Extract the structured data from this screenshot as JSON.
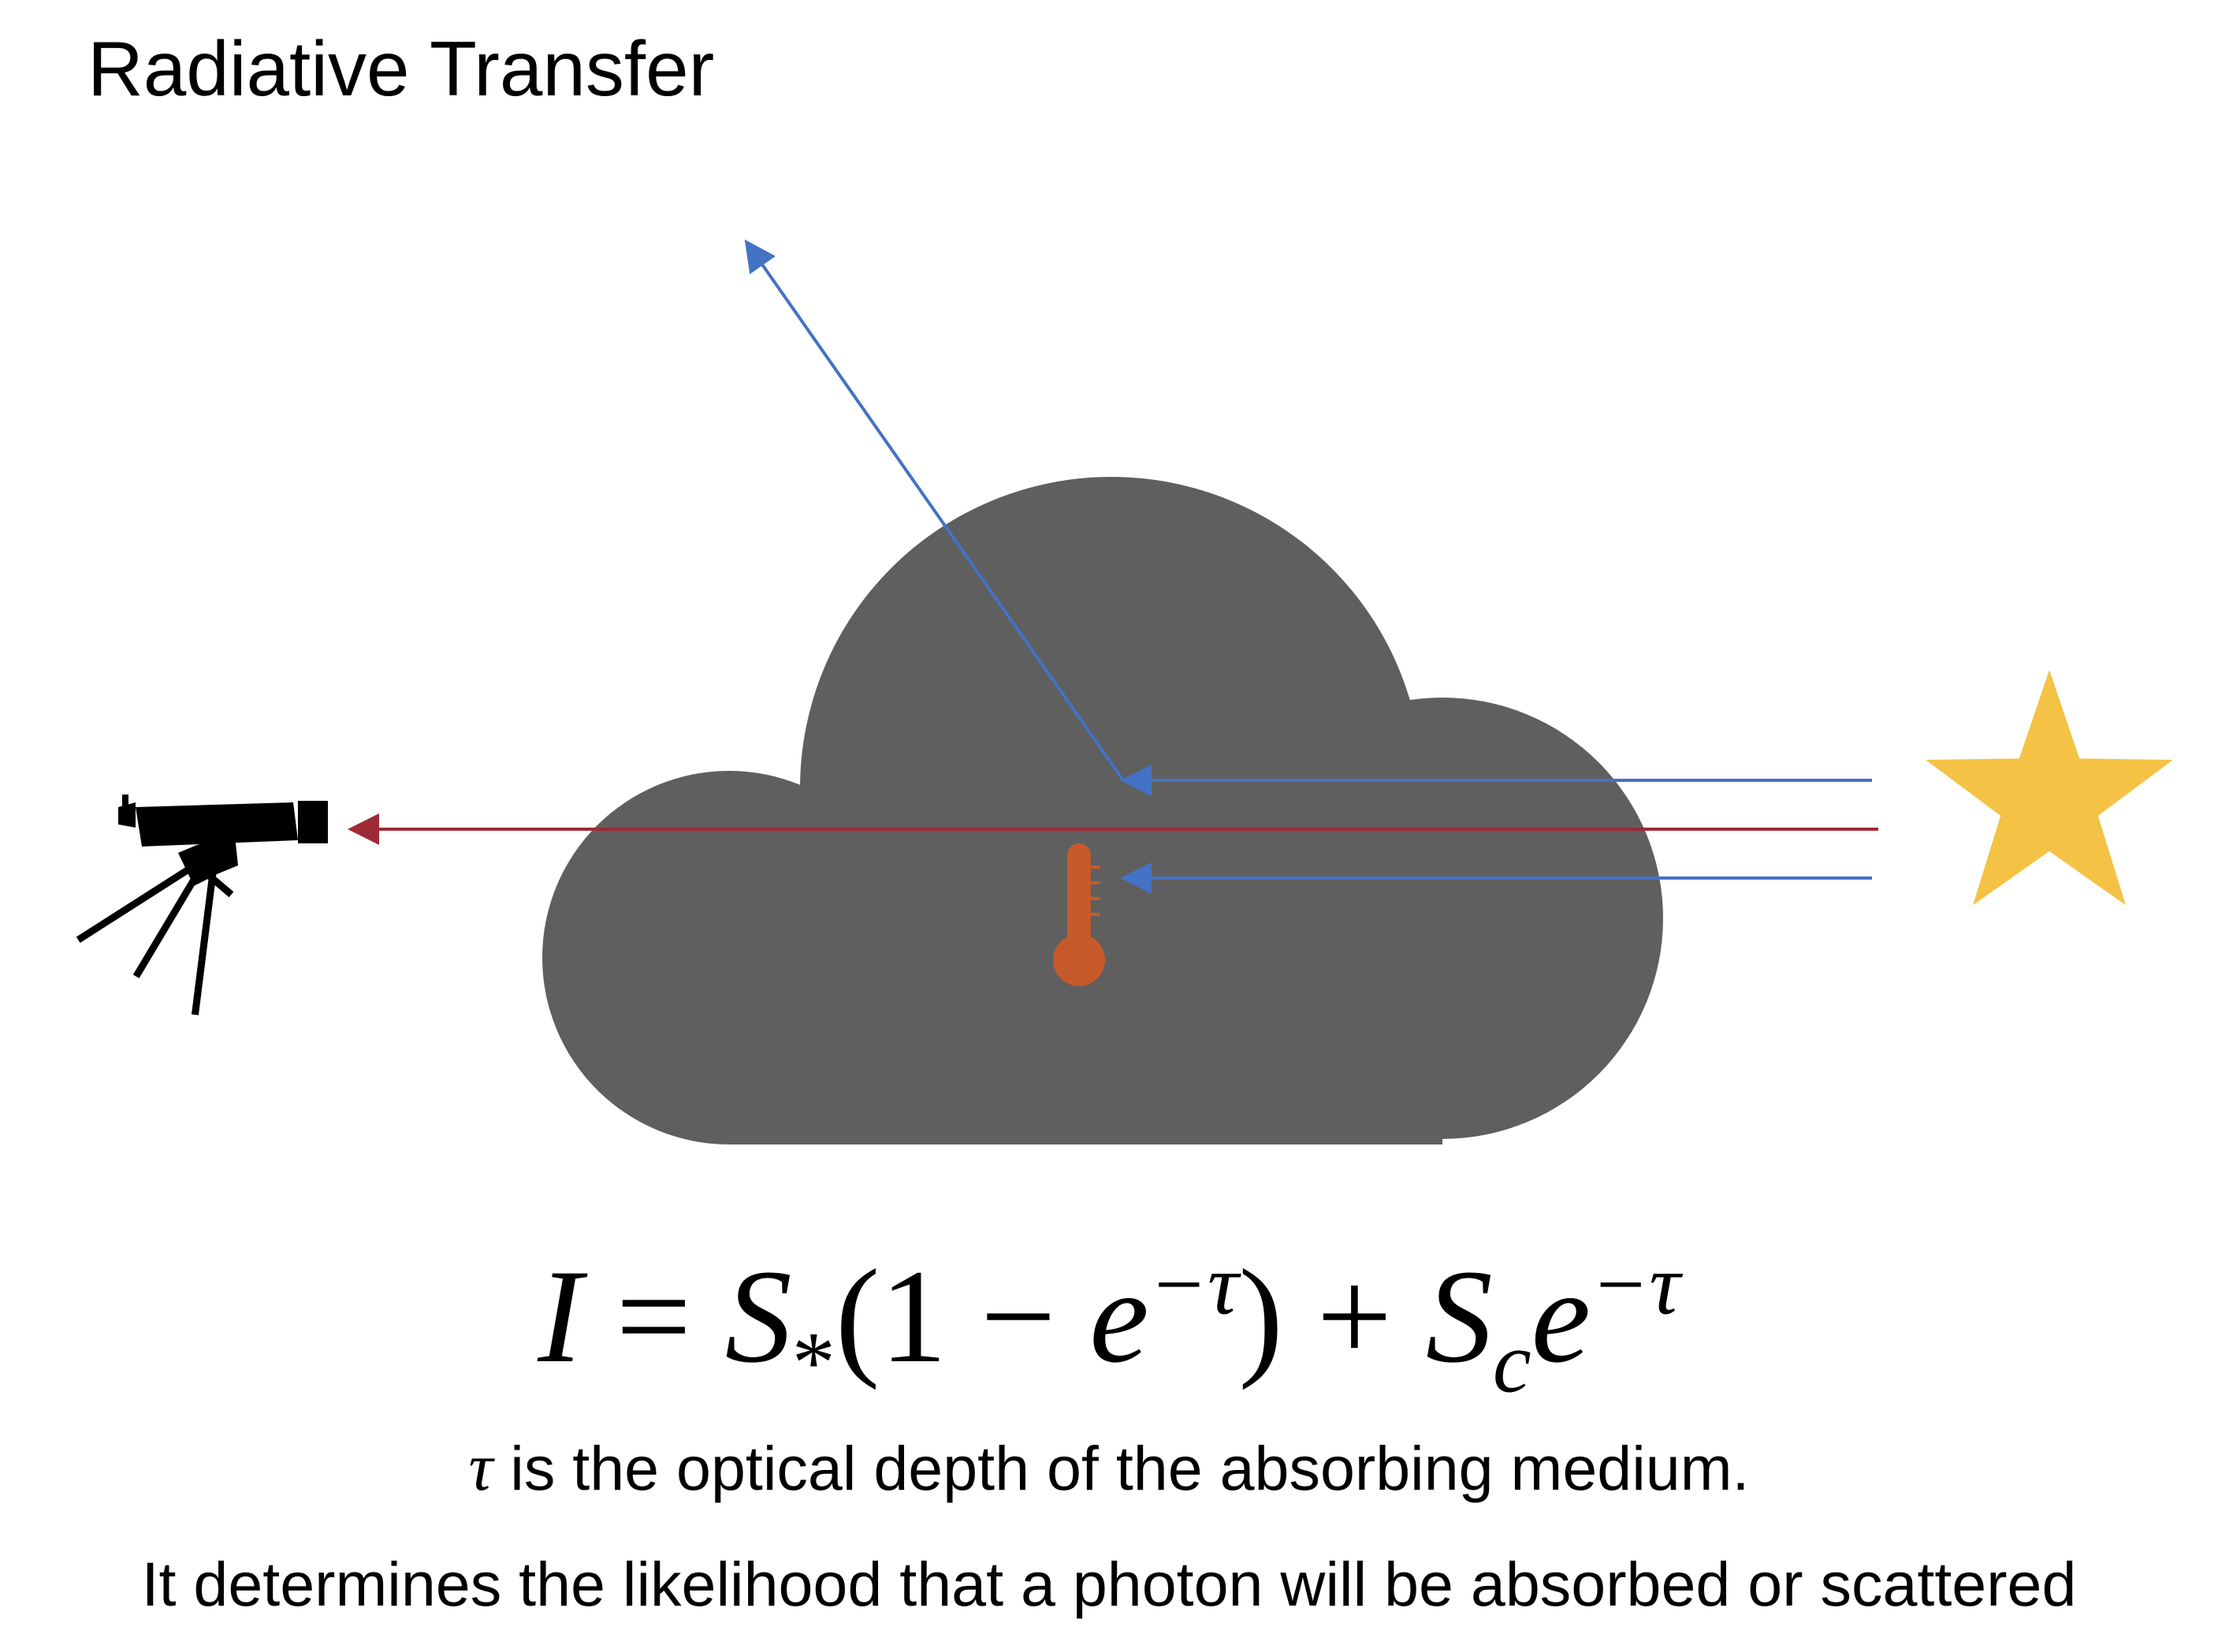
{
  "title": "Radiative Transfer",
  "diagram": {
    "nodes": [
      {
        "id": "telescope",
        "icon": "telescope-icon"
      },
      {
        "id": "cloud",
        "icon": "cloud-shape"
      },
      {
        "id": "thermometer",
        "icon": "thermometer-icon"
      },
      {
        "id": "star",
        "icon": "star-icon"
      }
    ],
    "edges": [
      {
        "from": "star",
        "to": "cloud",
        "kind": "incoming ray, scattered upward",
        "color": "#4472C4"
      },
      {
        "from": "star",
        "to": "telescope",
        "kind": "transmitted ray",
        "color": "#9E2A36"
      },
      {
        "from": "star",
        "to": "cloud",
        "kind": "incoming ray, absorbed",
        "color": "#4472C4"
      }
    ],
    "colors": {
      "cloud": "#5F5F5F",
      "star": "#F4C245",
      "thermometer": "#C65A2B",
      "ray_blue": "#4472C4",
      "ray_red": "#9E2A36",
      "telescope": "#000000"
    }
  },
  "equation": {
    "intensity": "I",
    "equals": "=",
    "source_star": "S",
    "source_star_sub": "*",
    "open": "(1 − ",
    "exp_base_1": "e",
    "exp_1": "−τ",
    "close_plus": ") + ",
    "source_cloud": "S",
    "source_cloud_sub": "c",
    "exp_base_2": "e",
    "exp_2": "−τ"
  },
  "caption": {
    "tau_symbol": "τ",
    "line1_rest": " is the optical depth of the absorbing medium.",
    "line2": "It determines the likelihood that a photon will be absorbed or scattered"
  }
}
